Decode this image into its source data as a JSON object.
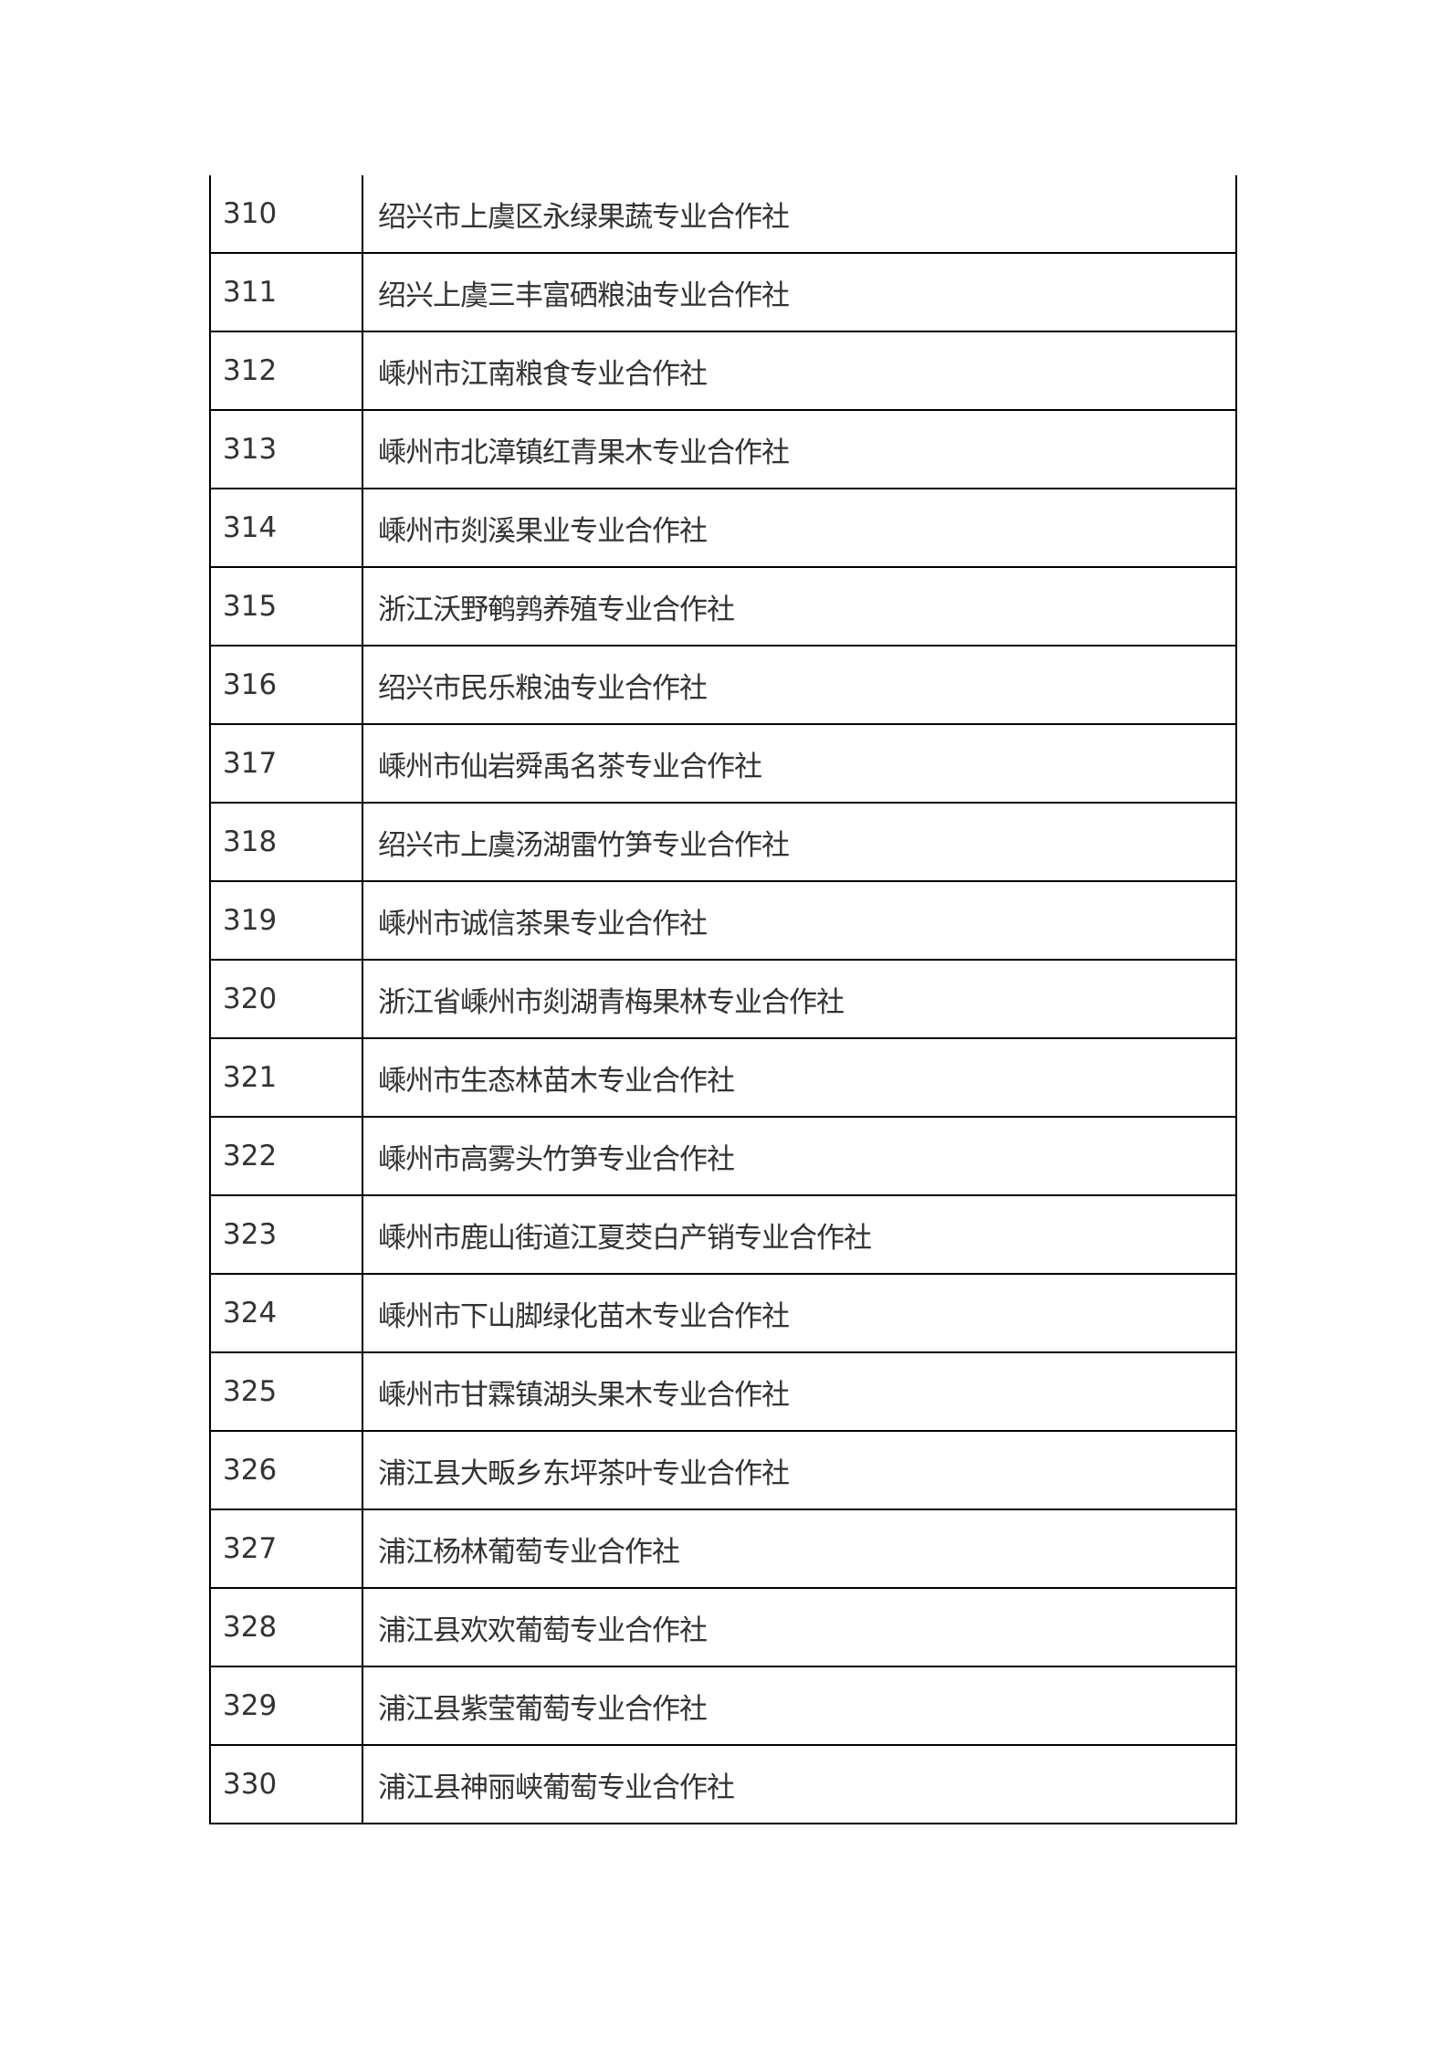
{
  "table": {
    "rows": [
      {
        "no": "310",
        "name": "绍兴市上虞区永绿果蔬专业合作社"
      },
      {
        "no": "311",
        "name": "绍兴上虞三丰富硒粮油专业合作社"
      },
      {
        "no": "312",
        "name": "嵊州市江南粮食专业合作社"
      },
      {
        "no": "313",
        "name": "嵊州市北漳镇红青果木专业合作社"
      },
      {
        "no": "314",
        "name": "嵊州市剡溪果业专业合作社"
      },
      {
        "no": "315",
        "name": "浙江沃野鹌鹑养殖专业合作社"
      },
      {
        "no": "316",
        "name": "绍兴市民乐粮油专业合作社"
      },
      {
        "no": "317",
        "name": "嵊州市仙岩舜禹名茶专业合作社"
      },
      {
        "no": "318",
        "name": "绍兴市上虞汤湖雷竹笋专业合作社"
      },
      {
        "no": "319",
        "name": "嵊州市诚信茶果专业合作社"
      },
      {
        "no": "320",
        "name": "浙江省嵊州市剡湖青梅果林专业合作社"
      },
      {
        "no": "321",
        "name": "嵊州市生态林苗木专业合作社"
      },
      {
        "no": "322",
        "name": "嵊州市高雾头竹笋专业合作社"
      },
      {
        "no": "323",
        "name": "嵊州市鹿山街道江夏茭白产销专业合作社"
      },
      {
        "no": "324",
        "name": "嵊州市下山脚绿化苗木专业合作社"
      },
      {
        "no": "325",
        "name": "嵊州市甘霖镇湖头果木专业合作社"
      },
      {
        "no": "326",
        "name": "浦江县大畈乡东坪茶叶专业合作社"
      },
      {
        "no": "327",
        "name": "浦江杨林葡萄专业合作社"
      },
      {
        "no": "328",
        "name": "浦江县欢欢葡萄专业合作社"
      },
      {
        "no": "329",
        "name": "浦江县紫莹葡萄专业合作社"
      },
      {
        "no": "330",
        "name": "浦江县神丽峡葡萄专业合作社"
      }
    ]
  }
}
